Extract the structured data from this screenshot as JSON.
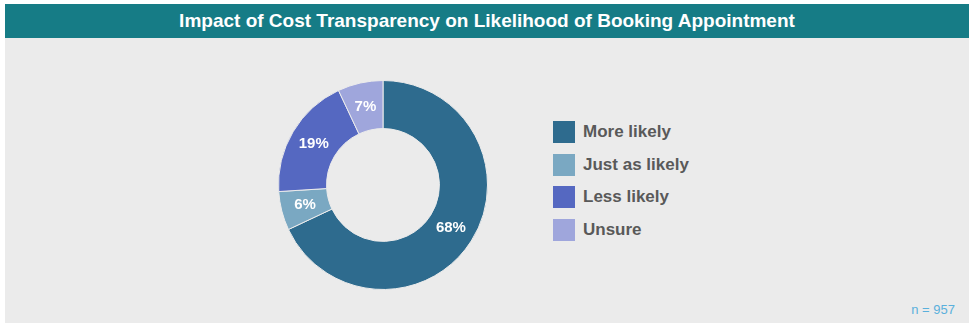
{
  "chart_data": {
    "type": "doughnut",
    "title": "Impact of Cost Transparency on Likelihood of Booking Appointment",
    "categories": [
      "More likely",
      "Just as likely",
      "Less likely",
      "Unsure"
    ],
    "values": [
      68,
      6,
      19,
      7
    ],
    "value_labels": [
      "68%",
      "6%",
      "19%",
      "7%"
    ],
    "colors": [
      "#2e6b8e",
      "#7aa8c2",
      "#5568c1",
      "#9fa6dc"
    ],
    "data_labels": true,
    "legend": "right",
    "annotations": [
      "n = 957"
    ]
  }
}
